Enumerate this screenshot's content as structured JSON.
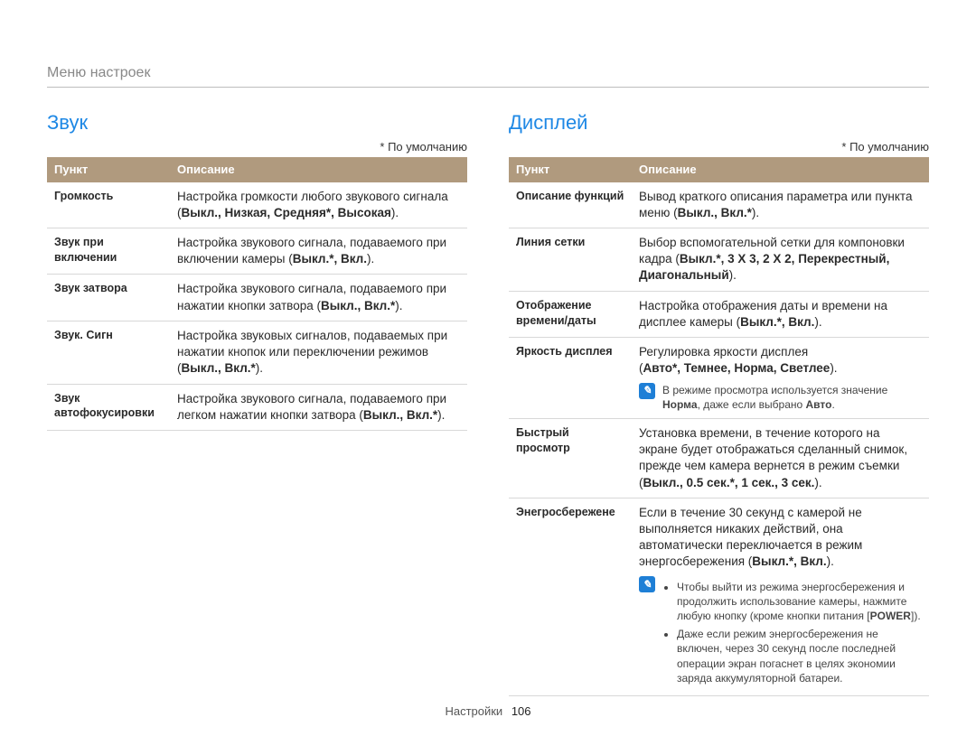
{
  "breadcrumb": "Меню настроек",
  "default_note": "* По умолчанию",
  "footer": {
    "section": "Настройки",
    "page": "106"
  },
  "columns": {
    "left": {
      "title": "Звук",
      "headers": {
        "item": "Пункт",
        "desc": "Описание"
      },
      "rows": [
        {
          "item": "Громкость",
          "plain": "Настройка громкости любого звукового сигнала (",
          "bold": "Выкл., Низкая, Средняя*, Высокая",
          "after": ")."
        },
        {
          "item": "Звук при включении",
          "plain": "Настройка звукового сигнала, подаваемого при включении камеры (",
          "bold": "Выкл.*, Вкл.",
          "after": ")."
        },
        {
          "item": "Звук затвора",
          "plain": "Настройка звукового сигнала, подаваемого при нажатии кнопки затвора (",
          "bold": "Выкл., Вкл.*",
          "after": ")."
        },
        {
          "item": "Звук. Сигн",
          "plain": "Настройка звуковых сигналов, подаваемых при нажатии кнопок или переключении режимов (",
          "bold": "Выкл., Вкл.*",
          "after": ")."
        },
        {
          "item": "Звук автофокусировки",
          "plain": "Настройка звукового сигнала, подаваемого при легком нажатии кнопки затвора (",
          "bold": "Выкл., Вкл.*",
          "after": ")."
        }
      ]
    },
    "right": {
      "title": "Дисплей",
      "headers": {
        "item": "Пункт",
        "desc": "Описание"
      },
      "rows": [
        {
          "item": "Описание функций",
          "plain": "Вывод краткого описания параметра или пункта меню (",
          "bold": "Выкл., Вкл.*",
          "after": ")."
        },
        {
          "item": "Линия сетки",
          "plain": "Выбор вспомогательной сетки для компоновки кадра (",
          "bold": "Выкл.*, 3 X 3, 2 X 2, Перекрестный, Диагональный",
          "after": ")."
        },
        {
          "item": "Отображение времени/даты",
          "plain": "Настройка отображения даты и времени на дисплее камеры (",
          "bold": "Выкл.*, Вкл.",
          "after": ")."
        },
        {
          "item": "Яркость дисплея",
          "line1": "Регулировка яркости дисплея",
          "line2_pre": "(",
          "line2_bold": "Авто*, Темнее, Норма, Светлее",
          "line2_post": ").",
          "note_pre": "В режиме просмотра используется значение ",
          "note_b1": "Норма",
          "note_mid": ", даже если выбрано ",
          "note_b2": "Авто",
          "note_post": "."
        },
        {
          "item": "Быстрый просмотр",
          "plain": "Установка времени, в течение которого на экране будет отображаться сделанный снимок, прежде чем камера вернется в режим съемки (",
          "bold": "Выкл., 0.5 сек.*, 1 сек., 3 сек.",
          "after": ")."
        },
        {
          "item": "Энегросбережене",
          "intro_pre": "Если в течение 30 секунд с камерой не выполняется никаких действий, она автоматически переключается в режим энергосбережения (",
          "intro_bold": "Выкл.*, Вкл.",
          "intro_post": ").",
          "bullets": [
            {
              "pre": "Чтобы выйти из режима энергосбережения и продолжить использование камеры, нажмите любую кнопку (кроме кнопки питания [",
              "bold": "POWER",
              "post": "])."
            },
            {
              "pre": "Даже если режим энергосбережения не включен, через 30 секунд после последней операции экран погаснет в целях экономии заряда аккумуляторной батареи."
            }
          ]
        }
      ]
    }
  }
}
